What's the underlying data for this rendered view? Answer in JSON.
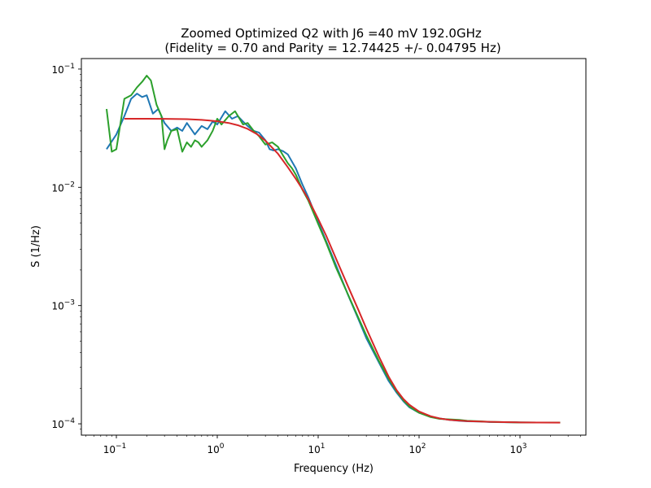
{
  "chart_data": {
    "type": "line",
    "title": "Zoomed Optimized Q2 with J6 =40 mV 192.0GHz",
    "subtitle": "(Fidelity = 0.70 and Parity = 12.74425 +/- 0.04795 Hz)",
    "xlabel": "Frequency (Hz)",
    "ylabel": "S (1/Hz)",
    "xscale": "log",
    "yscale": "log",
    "xlim": [
      0.045,
      4500
    ],
    "ylim": [
      8.02e-05,
      0.1227
    ],
    "grid": false,
    "x_ticks": [
      {
        "value": 0.1,
        "base": "10",
        "exp": "−1"
      },
      {
        "value": 1,
        "base": "10",
        "exp": "0"
      },
      {
        "value": 10,
        "base": "10",
        "exp": "1"
      },
      {
        "value": 100,
        "base": "10",
        "exp": "2"
      },
      {
        "value": 1000,
        "base": "10",
        "exp": "3"
      }
    ],
    "y_ticks": [
      {
        "value": 0.0001,
        "base": "10",
        "exp": "−4"
      },
      {
        "value": 0.001,
        "base": "10",
        "exp": "−3"
      },
      {
        "value": 0.01,
        "base": "10",
        "exp": "−2"
      },
      {
        "value": 0.1,
        "base": "10",
        "exp": "−1"
      }
    ],
    "series": [
      {
        "color": "#1f77b4",
        "x": [
          0.08,
          0.1,
          0.12,
          0.14,
          0.16,
          0.18,
          0.2,
          0.23,
          0.26,
          0.3,
          0.35,
          0.4,
          0.45,
          0.5,
          0.6,
          0.7,
          0.8,
          0.9,
          1.0,
          1.1,
          1.2,
          1.4,
          1.6,
          1.8,
          2.0,
          2.3,
          2.6,
          3.0,
          3.3,
          3.6,
          4.0,
          4.5,
          5.0,
          6.0,
          7.0,
          8.0,
          10,
          12,
          15,
          20,
          25,
          30,
          40,
          50,
          60,
          70,
          80,
          100,
          130,
          160,
          200,
          250,
          300,
          400,
          500,
          700,
          1000,
          1500,
          2500
        ],
        "y": [
          0.021,
          0.028,
          0.04,
          0.056,
          0.062,
          0.058,
          0.06,
          0.042,
          0.046,
          0.035,
          0.03,
          0.032,
          0.03,
          0.035,
          0.028,
          0.033,
          0.031,
          0.036,
          0.034,
          0.039,
          0.044,
          0.038,
          0.04,
          0.036,
          0.033,
          0.03,
          0.029,
          0.025,
          0.021,
          0.0205,
          0.021,
          0.0202,
          0.019,
          0.0145,
          0.0105,
          0.0082,
          0.0051,
          0.0035,
          0.0022,
          0.0012,
          0.00077,
          0.00053,
          0.00033,
          0.00023,
          0.000183,
          0.000155,
          0.000138,
          0.000124,
          0.000115,
          0.000111,
          0.000108,
          0.000106,
          0.000105,
          0.0001045,
          0.0001035,
          0.0001032,
          0.0001028,
          0.0001025,
          0.0001025
        ]
      },
      {
        "color": "#2ca02c",
        "x": [
          0.08,
          0.09,
          0.1,
          0.12,
          0.14,
          0.16,
          0.18,
          0.2,
          0.22,
          0.25,
          0.28,
          0.3,
          0.32,
          0.35,
          0.4,
          0.45,
          0.5,
          0.55,
          0.6,
          0.65,
          0.7,
          0.8,
          0.9,
          1.0,
          1.1,
          1.3,
          1.5,
          1.8,
          2.0,
          2.3,
          2.6,
          3.0,
          3.5,
          4.0,
          4.5,
          5.0,
          5.5,
          6.0,
          7.0,
          8.0,
          10,
          12,
          15,
          20,
          25,
          30,
          40,
          50,
          60,
          70,
          80,
          100,
          130,
          160,
          200,
          250,
          300,
          400,
          500,
          700,
          1000,
          1500,
          2500
        ],
        "y": [
          0.046,
          0.02,
          0.021,
          0.056,
          0.06,
          0.07,
          0.078,
          0.088,
          0.08,
          0.05,
          0.04,
          0.021,
          0.025,
          0.03,
          0.031,
          0.02,
          0.024,
          0.022,
          0.025,
          0.024,
          0.022,
          0.025,
          0.03,
          0.038,
          0.034,
          0.04,
          0.044,
          0.034,
          0.035,
          0.03,
          0.027,
          0.023,
          0.024,
          0.022,
          0.0185,
          0.016,
          0.0145,
          0.0128,
          0.0095,
          0.0077,
          0.0049,
          0.0034,
          0.0021,
          0.00121,
          0.00079,
          0.00056,
          0.00034,
          0.00024,
          0.000188,
          0.000158,
          0.00014,
          0.000124,
          0.000114,
          0.00011,
          0.000109,
          0.000108,
          0.000106,
          0.000105,
          0.000104,
          0.0001033,
          0.0001027,
          0.0001025,
          0.0001025
        ]
      },
      {
        "color": "#d62728",
        "x": [
          0.12,
          0.15,
          0.2,
          0.3,
          0.5,
          0.7,
          1.0,
          1.3,
          1.6,
          2.0,
          2.5,
          3.0,
          4.0,
          5.0,
          6.0,
          7.0,
          8.0,
          10,
          12,
          15,
          20,
          25,
          30,
          40,
          50,
          60,
          70,
          80,
          100,
          130,
          160,
          200,
          250,
          300,
          400,
          500,
          700,
          1000,
          1500,
          2500
        ],
        "y": [
          0.038,
          0.038,
          0.038,
          0.0379,
          0.0377,
          0.0372,
          0.0362,
          0.035,
          0.0335,
          0.0312,
          0.028,
          0.0248,
          0.0192,
          0.0148,
          0.0118,
          0.0096,
          0.0079,
          0.0054,
          0.0039,
          0.0025,
          0.00142,
          0.00092,
          0.00064,
          0.00037,
          0.00025,
          0.000192,
          0.000162,
          0.000145,
          0.000127,
          0.000116,
          0.000111,
          0.000108,
          0.0001065,
          0.0001055,
          0.0001045,
          0.000104,
          0.0001033,
          0.0001028,
          0.0001025,
          0.0001023
        ]
      }
    ]
  }
}
